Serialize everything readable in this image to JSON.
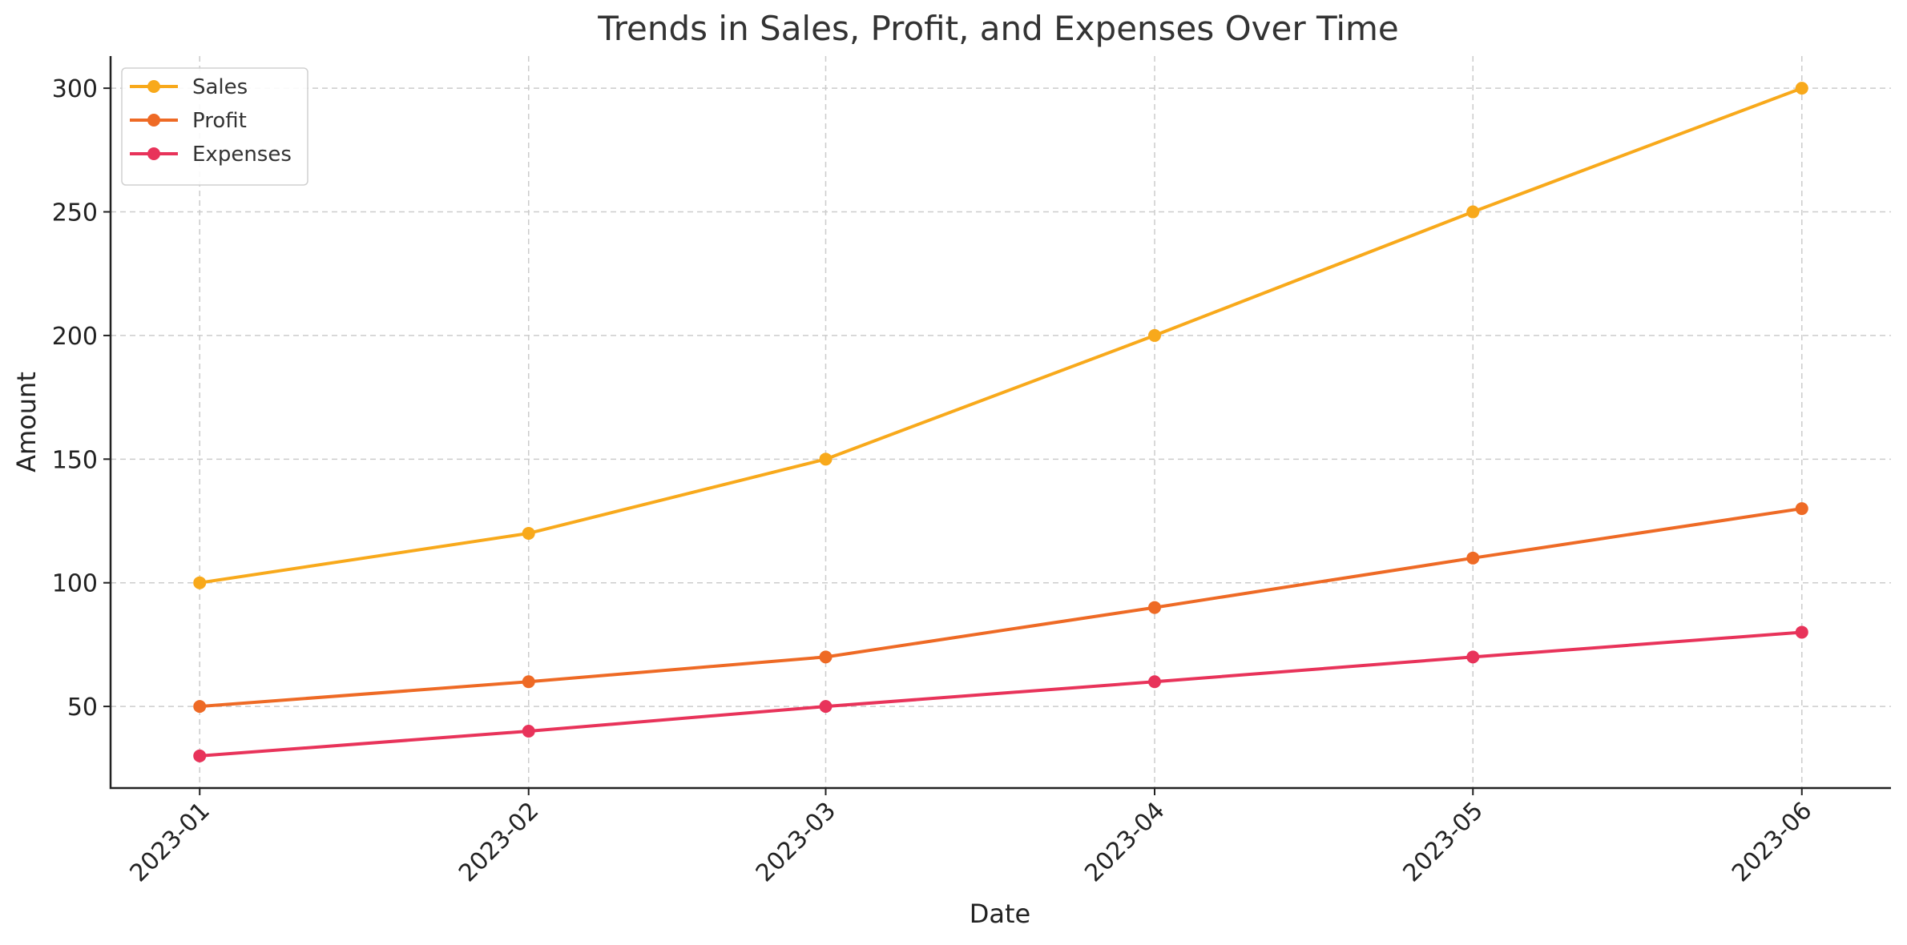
{
  "chart_data": {
    "type": "line",
    "title": "Trends in Sales, Profit, and Expenses Over Time",
    "xlabel": "Date",
    "ylabel": "Amount",
    "categories": [
      "2023-01",
      "2023-02",
      "2023-03",
      "2023-04",
      "2023-05",
      "2023-06"
    ],
    "x_dates": [
      "2023-01-01",
      "2023-02-01",
      "2023-03-01",
      "2023-04-01",
      "2023-05-01",
      "2023-06-01"
    ],
    "ylim": [
      17,
      313
    ],
    "yticks": [
      50,
      100,
      150,
      200,
      250,
      300
    ],
    "grid": true,
    "legend_position": "top-left",
    "series": [
      {
        "name": "Sales",
        "color": "#f8a91b",
        "values": [
          100,
          120,
          150,
          200,
          250,
          300
        ]
      },
      {
        "name": "Profit",
        "color": "#ee6a25",
        "values": [
          50,
          60,
          70,
          90,
          110,
          130
        ]
      },
      {
        "name": "Expenses",
        "color": "#e8335a",
        "values": [
          30,
          40,
          50,
          60,
          70,
          80
        ]
      }
    ]
  }
}
